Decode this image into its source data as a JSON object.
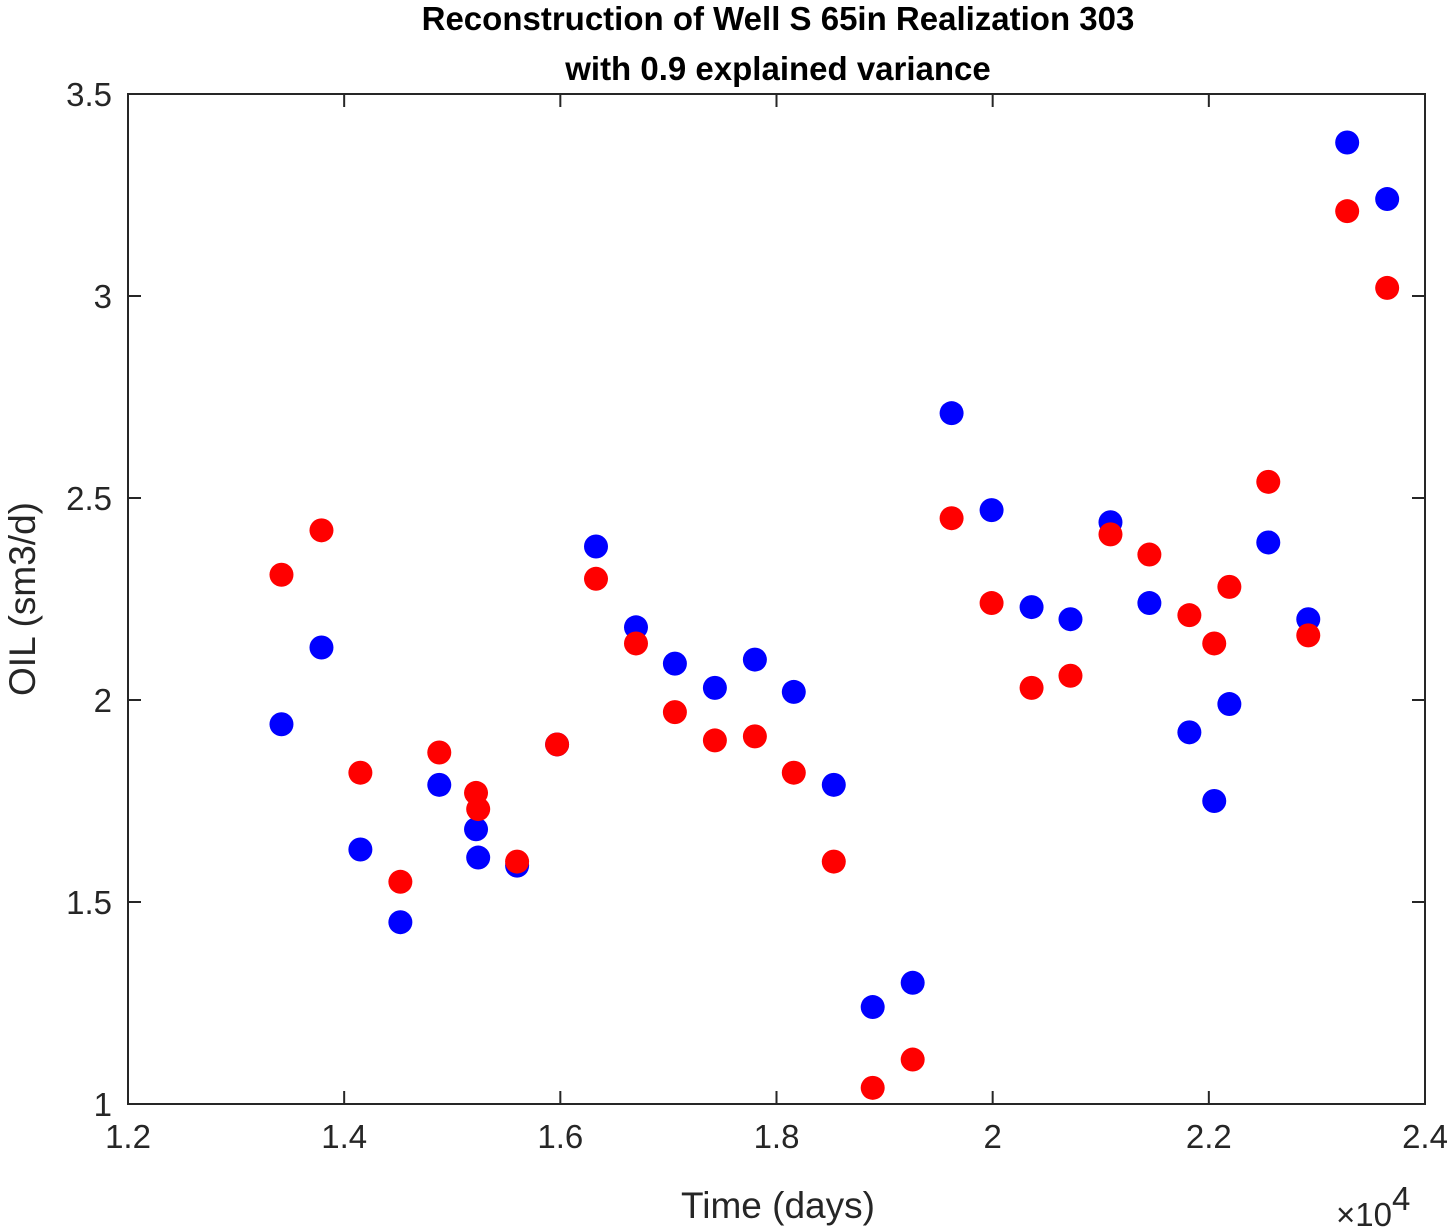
{
  "chart_data": {
    "type": "scatter",
    "title": [
      "Reconstruction of Well S 65in Realization 303",
      "with 0.9 explained variance"
    ],
    "xlabel": "Time (days)",
    "ylabel": "OIL (sm3/d)",
    "x_multiplier_label": {
      "base": "×10",
      "exponent": "4"
    },
    "xlim": [
      12000,
      24000
    ],
    "ylim": [
      1,
      3.5
    ],
    "xticks": [
      12000,
      14000,
      16000,
      18000,
      20000,
      22000,
      24000
    ],
    "xtick_labels": [
      "1.2",
      "1.4",
      "1.6",
      "1.8",
      "2",
      "2.2",
      "2.4"
    ],
    "yticks": [
      1,
      1.5,
      2,
      2.5,
      3,
      3.5
    ],
    "ytick_labels": [
      "1",
      "1.5",
      "2",
      "2.5",
      "3",
      "3.5"
    ],
    "grid": false,
    "series": [
      {
        "color": "#0000ff",
        "points": [
          [
            13420,
            1.94
          ],
          [
            13790,
            2.13
          ],
          [
            14150,
            1.63
          ],
          [
            14520,
            1.45
          ],
          [
            14880,
            1.79
          ],
          [
            15220,
            1.68
          ],
          [
            15240,
            1.61
          ],
          [
            15600,
            1.59
          ],
          [
            15970,
            1.89
          ],
          [
            16330,
            2.38
          ],
          [
            16700,
            2.18
          ],
          [
            17060,
            2.09
          ],
          [
            17430,
            2.03
          ],
          [
            17800,
            2.1
          ],
          [
            18160,
            2.02
          ],
          [
            18530,
            1.79
          ],
          [
            18890,
            1.24
          ],
          [
            19260,
            1.3
          ],
          [
            19620,
            2.71
          ],
          [
            19990,
            2.47
          ],
          [
            20360,
            2.23
          ],
          [
            20720,
            2.2
          ],
          [
            21090,
            2.44
          ],
          [
            21450,
            2.24
          ],
          [
            21820,
            1.92
          ],
          [
            22050,
            1.75
          ],
          [
            22190,
            1.99
          ],
          [
            22550,
            2.39
          ],
          [
            22920,
            2.2
          ],
          [
            23280,
            3.38
          ],
          [
            23650,
            3.24
          ]
        ]
      },
      {
        "color": "#ff0000",
        "points": [
          [
            13420,
            2.31
          ],
          [
            13790,
            2.42
          ],
          [
            14150,
            1.82
          ],
          [
            14520,
            1.55
          ],
          [
            14880,
            1.87
          ],
          [
            15220,
            1.77
          ],
          [
            15240,
            1.73
          ],
          [
            15600,
            1.6
          ],
          [
            15970,
            1.89
          ],
          [
            16330,
            2.3
          ],
          [
            16700,
            2.14
          ],
          [
            17060,
            1.97
          ],
          [
            17430,
            1.9
          ],
          [
            17800,
            1.91
          ],
          [
            18160,
            1.82
          ],
          [
            18530,
            1.6
          ],
          [
            18890,
            1.04
          ],
          [
            19260,
            1.11
          ],
          [
            19620,
            2.45
          ],
          [
            19990,
            2.24
          ],
          [
            20360,
            2.03
          ],
          [
            20720,
            2.06
          ],
          [
            21090,
            2.41
          ],
          [
            21450,
            2.36
          ],
          [
            21820,
            2.21
          ],
          [
            22050,
            2.14
          ],
          [
            22190,
            2.28
          ],
          [
            22550,
            2.54
          ],
          [
            22920,
            2.16
          ],
          [
            23280,
            3.21
          ],
          [
            23650,
            3.02
          ]
        ]
      }
    ]
  }
}
